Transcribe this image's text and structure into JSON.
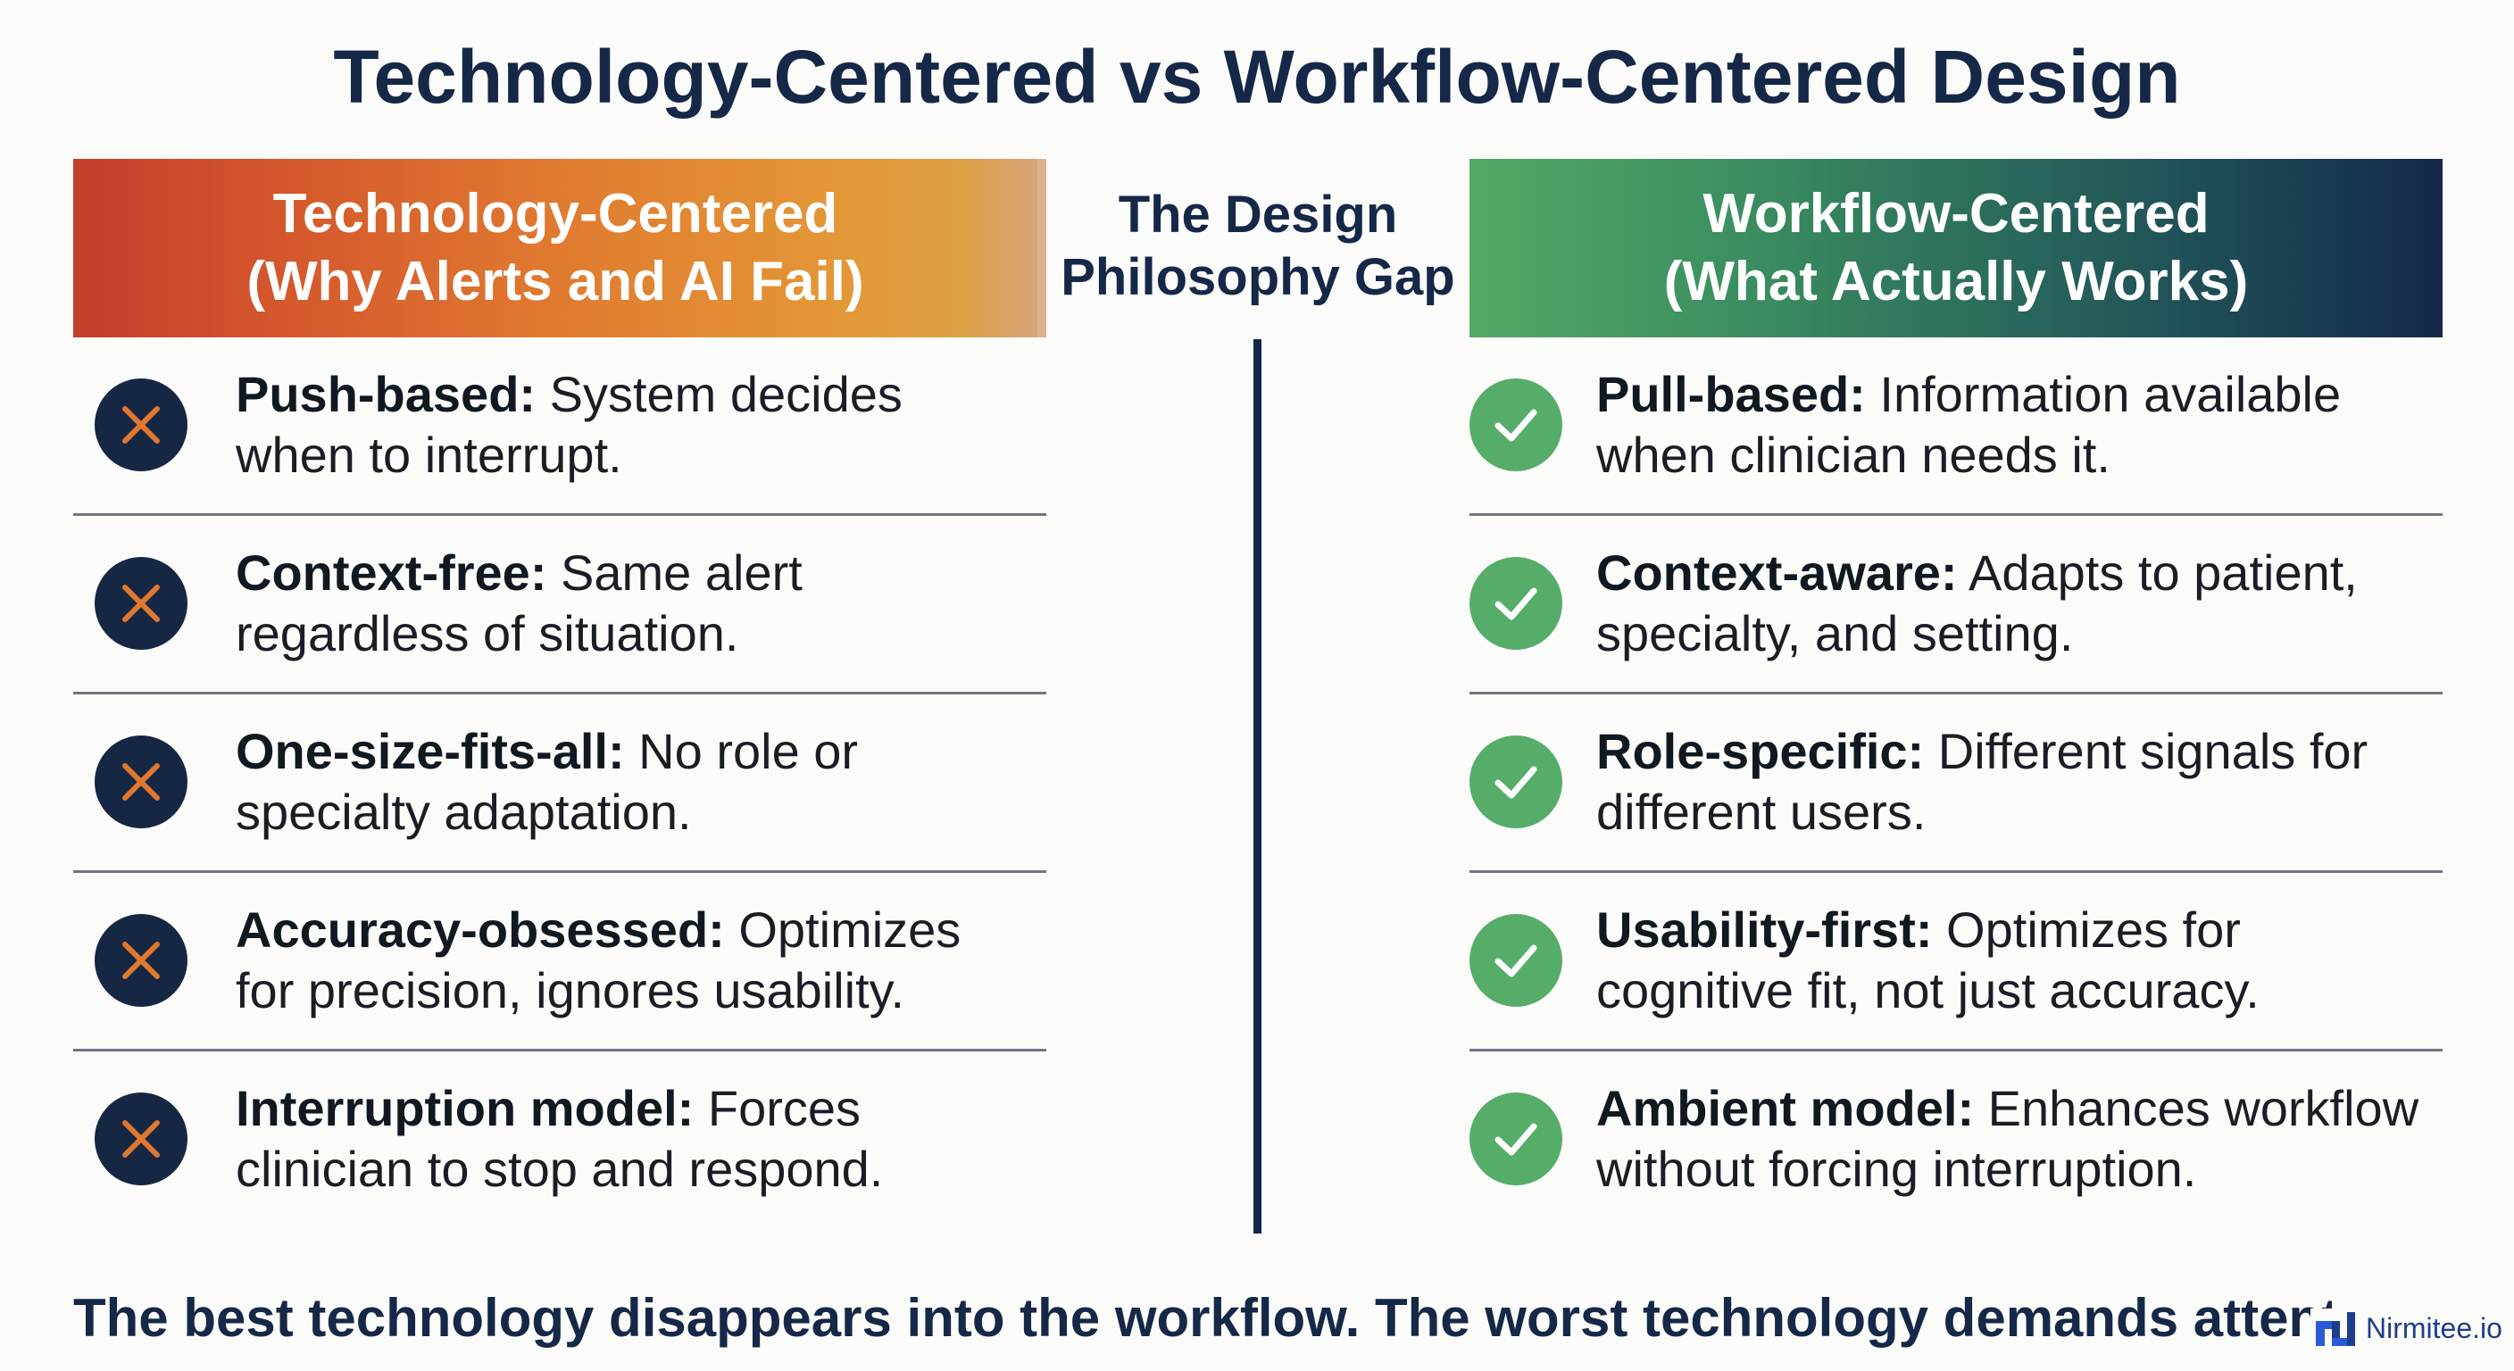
{
  "title": "Technology-Centered vs Workflow-Centered Design",
  "left_header": {
    "line1": "Technology-Centered",
    "line2": "(Why Alerts and AI Fail)"
  },
  "center_label": {
    "line1": "The Design",
    "line2": "Philosophy Gap"
  },
  "right_header": {
    "line1": "Workflow-Centered",
    "line2": "(What Actually Works)"
  },
  "left_items": [
    {
      "bold": "Push-based:",
      "line1_rest": " System decides",
      "line2": "when to interrupt.",
      "icon": "x-icon"
    },
    {
      "bold": "Context-free:",
      "line1_rest": " Same alert",
      "line2": "regardless of situation.",
      "icon": "x-icon"
    },
    {
      "bold": "One-size-fits-all:",
      "line1_rest": " No role or",
      "line2": "specialty adaptation.",
      "icon": "x-icon"
    },
    {
      "bold": "Accuracy-obsessed:",
      "line1_rest": " Optimizes",
      "line2": "for precision, ignores usability.",
      "icon": "x-icon"
    },
    {
      "bold": "Interruption model:",
      "line1_rest": " Forces",
      "line2": "clinician to stop and respond.",
      "icon": "x-icon"
    }
  ],
  "right_items": [
    {
      "bold": "Pull-based:",
      "line1_rest": " Information available",
      "line2": "when clinician needs it.",
      "icon": "check-icon"
    },
    {
      "bold": "Context-aware:",
      "line1_rest": " Adapts to patient,",
      "line2": "specialty, and setting.",
      "icon": "check-icon"
    },
    {
      "bold": "Role-specific:",
      "line1_rest": " Different signals for",
      "line2": "different users.",
      "icon": "check-icon"
    },
    {
      "bold": "Usability-first:",
      "line1_rest": " Optimizes for",
      "line2": "cognitive fit, not just accuracy.",
      "icon": "check-icon"
    },
    {
      "bold": "Ambient model:",
      "line1_rest": " Enhances workflow",
      "line2": "without forcing interruption.",
      "icon": "check-icon"
    }
  ],
  "footer": "The best technology disappears into the workflow. The worst technology demands attention fr",
  "brand": "Nirmitee.io",
  "colors": {
    "navy": "#162847",
    "cross_badge": "#162744",
    "cross_mark": "#e0782f",
    "check_badge": "#56ad6a",
    "check_mark": "#ffffff"
  }
}
